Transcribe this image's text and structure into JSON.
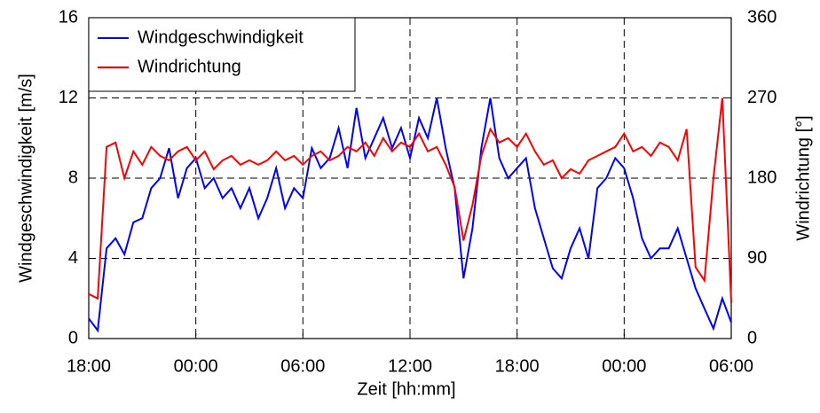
{
  "chart_data": {
    "type": "line",
    "x_label": "Zeit [hh:mm]",
    "y_label": "Windgeschwindigkeit  [m/s]",
    "y2_label": "Windrichtung [°]",
    "xlim": [
      0,
      36
    ],
    "xticks": [
      {
        "value": 0,
        "label": "18:00"
      },
      {
        "value": 6,
        "label": "00:00"
      },
      {
        "value": 12,
        "label": "06:00"
      },
      {
        "value": 18,
        "label": "12:00"
      },
      {
        "value": 24,
        "label": "18:00"
      },
      {
        "value": 30,
        "label": "00:00"
      },
      {
        "value": 36,
        "label": "06:00"
      }
    ],
    "ylim": [
      0,
      16
    ],
    "yticks": [
      0,
      4,
      8,
      12,
      16
    ],
    "y2lim": [
      0,
      360
    ],
    "y2ticks": [
      0,
      90,
      180,
      270,
      360
    ],
    "grid": true,
    "legend": "upper left",
    "x": [
      0,
      0.5,
      1,
      1.5,
      2,
      2.5,
      3,
      3.5,
      4,
      4.5,
      5,
      5.5,
      6,
      6.5,
      7,
      7.5,
      8,
      8.5,
      9,
      9.5,
      10,
      10.5,
      11,
      11.5,
      12,
      12.5,
      13,
      13.5,
      14,
      14.5,
      15,
      15.5,
      16,
      16.5,
      17,
      17.5,
      18,
      18.5,
      19,
      19.5,
      20,
      20.5,
      21,
      21.5,
      22,
      22.5,
      23,
      23.5,
      24,
      24.5,
      25,
      25.5,
      26,
      26.5,
      27,
      27.5,
      28,
      28.5,
      29,
      29.5,
      30,
      30.5,
      31,
      31.5,
      32,
      32.5,
      33,
      33.5,
      34,
      34.5,
      35,
      35.5,
      36
    ],
    "series": [
      {
        "name": "Windgeschwindigkeit",
        "color": "#0000ff",
        "axis": "y",
        "values": [
          1.0,
          0.4,
          4.5,
          5.0,
          4.2,
          5.8,
          6.0,
          7.5,
          8.0,
          9.5,
          7.0,
          8.5,
          9.0,
          7.5,
          8.0,
          7.0,
          7.5,
          6.5,
          7.5,
          6.0,
          7.0,
          8.5,
          6.5,
          7.5,
          7.0,
          9.5,
          8.5,
          9.0,
          10.5,
          8.5,
          11.5,
          9.0,
          10.0,
          11.0,
          9.5,
          10.5,
          9.0,
          11.0,
          10.0,
          12.0,
          9.5,
          7.5,
          3.0,
          5.5,
          9.5,
          12.0,
          9.0,
          8.0,
          8.5,
          9.0,
          6.5,
          5.0,
          3.5,
          3.0,
          4.5,
          5.5,
          4.0,
          7.5,
          8.0,
          9.0,
          8.5,
          7.0,
          5.0,
          4.0,
          4.5,
          4.5,
          5.5,
          4.0,
          2.5,
          1.5,
          0.5,
          2.0,
          0.8
        ]
      },
      {
        "name": "Windrichtung",
        "color": "#ff0000",
        "axis": "y2",
        "values": [
          50,
          45,
          215,
          220,
          180,
          210,
          195,
          215,
          205,
          200,
          210,
          215,
          200,
          210,
          190,
          200,
          205,
          195,
          200,
          195,
          200,
          210,
          200,
          205,
          195,
          205,
          210,
          200,
          205,
          215,
          210,
          220,
          205,
          225,
          210,
          220,
          215,
          230,
          210,
          215,
          195,
          170,
          110,
          150,
          205,
          235,
          220,
          225,
          215,
          230,
          210,
          195,
          200,
          180,
          190,
          185,
          200,
          205,
          210,
          215,
          230,
          210,
          215,
          205,
          220,
          215,
          200,
          235,
          80,
          65,
          180,
          270,
          40
        ]
      }
    ]
  }
}
